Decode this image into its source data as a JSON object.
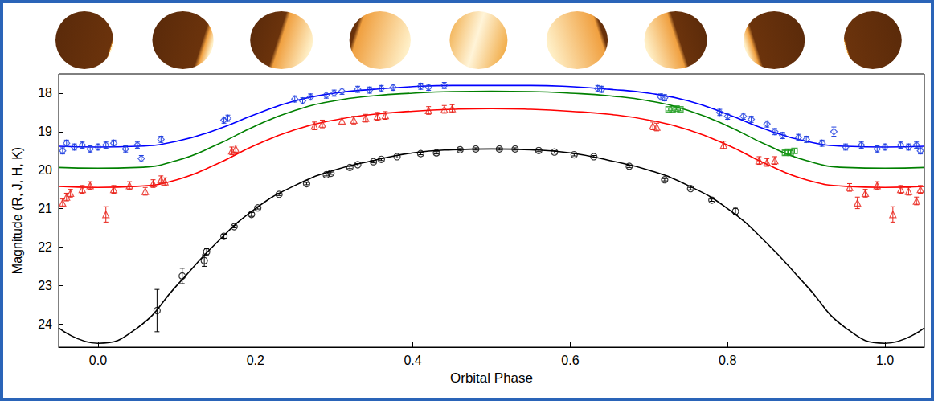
{
  "chart_data": {
    "type": "scatter",
    "xlabel": "Orbital Phase",
    "ylabel": "Magnitude (R, J, H, K)",
    "xlim": [
      -0.05,
      1.05
    ],
    "xticks": [
      {
        "value": 0,
        "label": "0.0"
      },
      {
        "value": 0.2,
        "label": "0.2"
      },
      {
        "value": 0.4,
        "label": "0.4"
      },
      {
        "value": 0.6,
        "label": "0.6"
      },
      {
        "value": 0.8,
        "label": "0.8"
      },
      {
        "value": 1,
        "label": "1.0"
      }
    ],
    "ylim": [
      24.6,
      17.5
    ],
    "yticks": [
      18,
      19,
      20,
      21,
      22,
      23,
      24
    ],
    "grid": false,
    "series": [
      {
        "type": "line",
        "color": "#0000ff",
        "line_style": "solid",
        "x": [
          -0.05,
          0,
          0.05,
          0.1,
          0.15,
          0.2,
          0.25,
          0.3,
          0.35,
          0.4,
          0.45,
          0.5,
          0.55,
          0.6,
          0.65,
          0.7,
          0.75,
          0.8,
          0.85,
          0.9,
          0.95,
          1,
          1.05
        ],
        "values": [
          19.38,
          19.4,
          19.38,
          19.25,
          18.95,
          18.55,
          18.2,
          18.0,
          17.9,
          17.83,
          17.8,
          17.8,
          17.8,
          17.83,
          17.9,
          18.0,
          18.2,
          18.55,
          18.95,
          19.25,
          19.38,
          19.4,
          19.38
        ]
      },
      {
        "type": "line",
        "color": "#008000",
        "line_style": "solid",
        "x": [
          -0.05,
          0,
          0.05,
          0.1,
          0.15,
          0.2,
          0.25,
          0.3,
          0.35,
          0.4,
          0.45,
          0.5,
          0.55,
          0.6,
          0.65,
          0.7,
          0.75,
          0.8,
          0.85,
          0.9,
          0.95,
          1,
          1.05
        ],
        "values": [
          19.93,
          19.95,
          19.93,
          19.75,
          19.35,
          18.85,
          18.45,
          18.2,
          18.07,
          18.0,
          17.96,
          17.95,
          17.96,
          18.0,
          18.07,
          18.2,
          18.45,
          18.85,
          19.35,
          19.75,
          19.93,
          19.95,
          19.93
        ]
      },
      {
        "type": "line",
        "color": "#ff0000",
        "line_style": "solid",
        "x": [
          -0.05,
          0,
          0.05,
          0.1,
          0.15,
          0.2,
          0.25,
          0.3,
          0.35,
          0.4,
          0.45,
          0.5,
          0.55,
          0.6,
          0.65,
          0.7,
          0.75,
          0.8,
          0.85,
          0.9,
          0.95,
          1,
          1.05
        ],
        "values": [
          20.42,
          20.45,
          20.42,
          20.25,
          19.85,
          19.35,
          18.95,
          18.7,
          18.55,
          18.47,
          18.42,
          18.4,
          18.42,
          18.47,
          18.55,
          18.7,
          18.95,
          19.35,
          19.85,
          20.25,
          20.42,
          20.45,
          20.42
        ]
      },
      {
        "type": "line",
        "color": "#000000",
        "line_style": "solid",
        "x": [
          -0.05,
          0,
          0.05,
          0.1,
          0.15,
          0.2,
          0.25,
          0.3,
          0.35,
          0.4,
          0.45,
          0.5,
          0.55,
          0.6,
          0.65,
          0.7,
          0.75,
          0.8,
          0.85,
          0.9,
          0.95,
          1,
          1.05
        ],
        "values": [
          24.1,
          24.5,
          24.1,
          23.0,
          21.9,
          21.0,
          20.4,
          20.0,
          19.75,
          19.55,
          19.47,
          19.45,
          19.47,
          19.55,
          19.75,
          20.0,
          20.4,
          21.0,
          21.9,
          23.0,
          24.1,
          24.5,
          24.1
        ]
      },
      {
        "type": "scatter",
        "color": "#1f3fe0",
        "marker": "diamond",
        "x": [
          -0.045,
          -0.04,
          -0.03,
          -0.02,
          -0.01,
          0.0,
          0.01,
          0.02,
          0.035,
          0.05,
          0.055,
          0.08,
          0.16,
          0.165,
          0.25,
          0.26,
          0.27,
          0.29,
          0.3,
          0.31,
          0.33,
          0.345,
          0.36,
          0.375,
          0.41,
          0.42,
          0.44,
          0.635,
          0.64,
          0.715,
          0.72,
          0.79,
          0.8,
          0.82,
          0.83,
          0.85,
          0.86,
          0.87,
          0.89,
          0.9,
          0.92,
          0.935,
          0.95,
          0.97,
          0.99,
          1.0,
          1.02,
          1.03,
          1.04,
          1.045
        ],
        "values": [
          19.5,
          19.3,
          19.4,
          19.35,
          19.45,
          19.4,
          19.35,
          19.3,
          19.45,
          19.35,
          19.7,
          19.2,
          18.7,
          18.65,
          18.15,
          18.2,
          18.1,
          18.05,
          18.0,
          17.95,
          17.9,
          17.92,
          17.88,
          17.85,
          17.82,
          17.85,
          17.8,
          17.88,
          17.9,
          18.1,
          18.12,
          18.5,
          18.6,
          18.6,
          18.68,
          18.8,
          19.0,
          19.1,
          19.15,
          19.2,
          19.3,
          19.0,
          19.4,
          19.35,
          19.45,
          19.4,
          19.35,
          19.4,
          19.35,
          19.5
        ],
        "errors": [
          0.08,
          0.08,
          0.08,
          0.08,
          0.08,
          0.08,
          0.08,
          0.08,
          0.08,
          0.08,
          0.08,
          0.08,
          0.08,
          0.08,
          0.08,
          0.08,
          0.08,
          0.08,
          0.08,
          0.08,
          0.08,
          0.08,
          0.08,
          0.08,
          0.08,
          0.08,
          0.08,
          0.08,
          0.08,
          0.08,
          0.08,
          0.08,
          0.08,
          0.08,
          0.08,
          0.08,
          0.08,
          0.08,
          0.08,
          0.08,
          0.08,
          0.12,
          0.08,
          0.08,
          0.08,
          0.08,
          0.08,
          0.08,
          0.08,
          0.08
        ]
      },
      {
        "type": "scatter",
        "color": "#1a9a1a",
        "marker": "square",
        "x": [
          0.725,
          0.73,
          0.735,
          0.74,
          0.873,
          0.877,
          0.88,
          0.885
        ],
        "values": [
          18.42,
          18.42,
          18.4,
          18.42,
          19.55,
          19.52,
          19.55,
          19.5
        ],
        "errors": [
          0.04,
          0.04,
          0.04,
          0.04,
          0.06,
          0.06,
          0.06,
          0.06
        ]
      },
      {
        "type": "scatter",
        "color": "#e8231a",
        "marker": "triangle",
        "x": [
          -0.045,
          -0.04,
          -0.035,
          -0.02,
          -0.01,
          0.01,
          0.02,
          0.04,
          0.06,
          0.07,
          0.08,
          0.085,
          0.17,
          0.175,
          0.275,
          0.285,
          0.31,
          0.325,
          0.34,
          0.355,
          0.365,
          0.42,
          0.44,
          0.45,
          0.705,
          0.71,
          0.795,
          0.84,
          0.85,
          0.86,
          0.955,
          0.965,
          0.975,
          0.99,
          1.01,
          1.02,
          1.03,
          1.04,
          1.045
        ],
        "values": [
          20.85,
          20.7,
          20.6,
          20.5,
          20.4,
          21.15,
          20.5,
          20.4,
          20.55,
          20.35,
          20.25,
          20.3,
          19.5,
          19.45,
          18.85,
          18.8,
          18.72,
          18.7,
          18.65,
          18.6,
          18.58,
          18.45,
          18.42,
          18.4,
          18.85,
          18.88,
          19.35,
          19.75,
          19.8,
          19.75,
          20.45,
          20.85,
          20.6,
          20.4,
          21.15,
          20.5,
          20.55,
          20.8,
          20.5
        ],
        "errors": [
          0.1,
          0.1,
          0.1,
          0.1,
          0.1,
          0.2,
          0.1,
          0.1,
          0.1,
          0.1,
          0.1,
          0.1,
          0.1,
          0.1,
          0.1,
          0.1,
          0.1,
          0.1,
          0.1,
          0.1,
          0.1,
          0.1,
          0.1,
          0.1,
          0.1,
          0.1,
          0.1,
          0.1,
          0.1,
          0.1,
          0.1,
          0.15,
          0.1,
          0.1,
          0.2,
          0.1,
          0.1,
          0.1,
          0.1
        ]
      },
      {
        "type": "scatter",
        "color": "#000000",
        "marker": "circle",
        "x": [
          0.075,
          0.107,
          0.135,
          0.138,
          0.16,
          0.173,
          0.195,
          0.203,
          0.23,
          0.265,
          0.29,
          0.296,
          0.32,
          0.33,
          0.35,
          0.36,
          0.38,
          0.41,
          0.43,
          0.46,
          0.48,
          0.51,
          0.53,
          0.56,
          0.58,
          0.605,
          0.63,
          0.675,
          0.72,
          0.753,
          0.78,
          0.81
        ],
        "values": [
          23.65,
          22.75,
          22.35,
          22.12,
          21.72,
          21.47,
          21.15,
          20.98,
          20.63,
          20.35,
          20.12,
          20.08,
          19.93,
          19.86,
          19.78,
          19.72,
          19.65,
          19.57,
          19.55,
          19.47,
          19.45,
          19.45,
          19.45,
          19.49,
          19.53,
          19.6,
          19.65,
          19.9,
          20.25,
          20.48,
          20.78,
          21.07
        ],
        "errors": [
          0.55,
          0.2,
          0.15,
          0.08,
          0.05,
          0.03,
          0.05,
          0.03,
          0.03,
          0.03,
          0.03,
          0.03,
          0.03,
          0.03,
          0.03,
          0.03,
          0.03,
          0.03,
          0.03,
          0.03,
          0.03,
          0.03,
          0.03,
          0.03,
          0.03,
          0.03,
          0.03,
          0.03,
          0.03,
          0.03,
          0.03,
          0.08
        ]
      }
    ]
  }
}
